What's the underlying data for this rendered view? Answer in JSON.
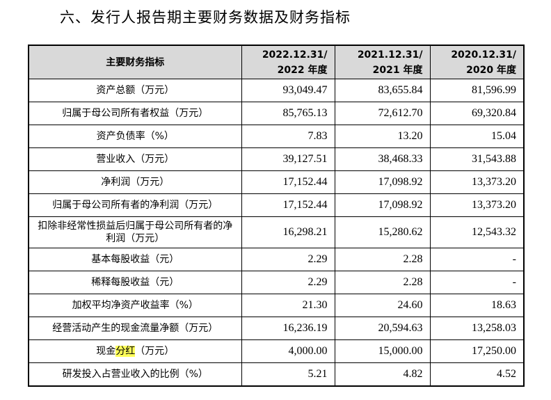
{
  "section_title": "六、发行人报告期主要财务数据及财务指标",
  "table": {
    "header": {
      "label": "主要财务指标",
      "cols": [
        {
          "line1": "2022.12.31/",
          "line2": "2022 年度"
        },
        {
          "line1": "2021.12.31/",
          "line2": "2021 年度"
        },
        {
          "line1": "2020.12.31/",
          "line2": "2020 年度"
        }
      ]
    },
    "rows": [
      {
        "label": "资产总额（万元）",
        "v": [
          "93,049.47",
          "83,655.84",
          "81,596.99"
        ]
      },
      {
        "label": "归属于母公司所有者权益（万元）",
        "v": [
          "85,765.13",
          "72,612.70",
          "69,320.84"
        ]
      },
      {
        "label": "资产负债率（%）",
        "v": [
          "7.83",
          "13.20",
          "15.04"
        ]
      },
      {
        "label": "营业收入（万元）",
        "v": [
          "39,127.51",
          "38,468.33",
          "31,543.88"
        ]
      },
      {
        "label": "净利润（万元）",
        "v": [
          "17,152.44",
          "17,098.92",
          "13,373.20"
        ]
      },
      {
        "label": "归属于母公司所有者的净利润（万元）",
        "v": [
          "17,152.44",
          "17,098.92",
          "13,373.20"
        ]
      },
      {
        "label": "扣除非经常性损益后归属于母公司所有者的净利润（万元）",
        "v": [
          "16,298.21",
          "15,280.62",
          "12,543.32"
        ]
      },
      {
        "label": "基本每股收益（元）",
        "v": [
          "2.29",
          "2.28",
          "-"
        ]
      },
      {
        "label": "稀释每股收益（元）",
        "v": [
          "2.29",
          "2.28",
          "-"
        ]
      },
      {
        "label": "加权平均净资产收益率（%）",
        "v": [
          "21.30",
          "24.60",
          "18.63"
        ]
      },
      {
        "label": "经营活动产生的现金流量净额（万元）",
        "v": [
          "16,236.19",
          "20,594.63",
          "13,258.03"
        ]
      },
      {
        "label_pre": "现金",
        "label_hl": "分红",
        "label_post": "（万元）",
        "v": [
          "4,000.00",
          "15,000.00",
          "17,250.00"
        ]
      },
      {
        "label": "研发投入占营业收入的比例（%）",
        "v": [
          "5.21",
          "4.82",
          "4.52"
        ]
      }
    ]
  }
}
